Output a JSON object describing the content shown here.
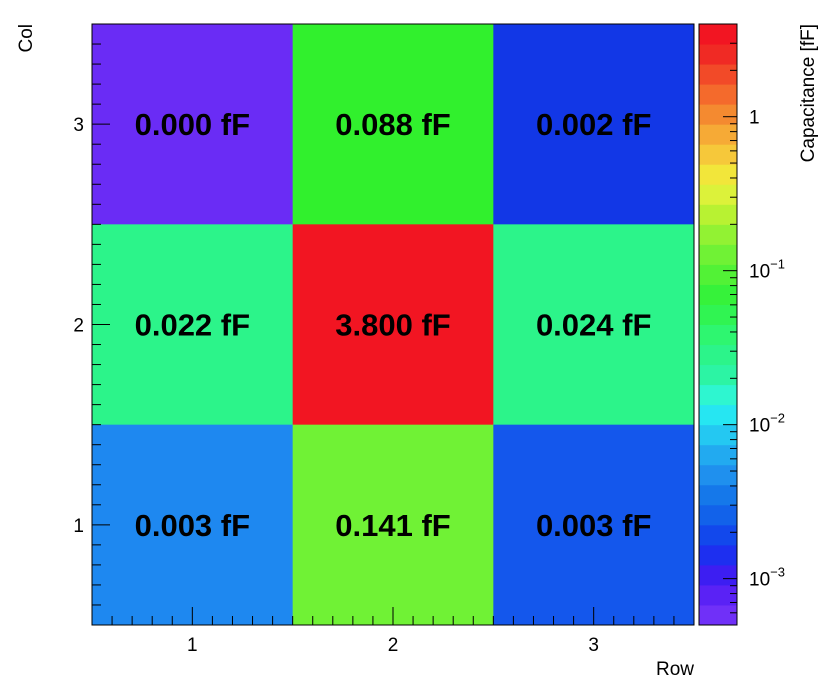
{
  "chart_data": {
    "type": "heatmap",
    "xlabel": "Row",
    "ylabel": "Col",
    "x_categories": [
      "1",
      "2",
      "3"
    ],
    "y_categories": [
      "1",
      "2",
      "3"
    ],
    "cells": [
      {
        "x": "1",
        "y": "3",
        "value": 0.0005,
        "label": "0.000 fF",
        "color": "#6a2cf5"
      },
      {
        "x": "2",
        "y": "3",
        "value": 0.088,
        "label": "0.088 fF",
        "color": "#31f02d"
      },
      {
        "x": "3",
        "y": "3",
        "value": 0.002,
        "label": "0.002 fF",
        "color": "#1237e6"
      },
      {
        "x": "1",
        "y": "2",
        "value": 0.022,
        "label": "0.022 fF",
        "color": "#2cf48a"
      },
      {
        "x": "2",
        "y": "2",
        "value": 3.8,
        "label": "3.800 fF",
        "color": "#f21522"
      },
      {
        "x": "3",
        "y": "2",
        "value": 0.024,
        "label": "0.024 fF",
        "color": "#2cf48a"
      },
      {
        "x": "1",
        "y": "1",
        "value": 0.003,
        "label": "0.003 fF",
        "color": "#1e88f0"
      },
      {
        "x": "2",
        "y": "1",
        "value": 0.141,
        "label": "0.141 fF",
        "color": "#70f235"
      },
      {
        "x": "3",
        "y": "1",
        "value": 0.003,
        "label": "0.003 fF",
        "color": "#1457ec"
      }
    ],
    "colorbar": {
      "label": "Capacitance [fF]",
      "scale": "log",
      "range": [
        0.0005,
        4
      ],
      "ticks": [
        {
          "base": "10",
          "exp": "−3",
          "value": 0.001
        },
        {
          "base": "10",
          "exp": "−2",
          "value": 0.01
        },
        {
          "base": "10",
          "exp": "−1",
          "value": 0.1
        },
        {
          "base": "1",
          "exp": "",
          "value": 1
        }
      ],
      "colors": [
        "#7030f8",
        "#5a22f5",
        "#3d1ef2",
        "#1d2ff0",
        "#1248ec",
        "#1262ea",
        "#1578ea",
        "#1f90ee",
        "#22aaf0",
        "#24c8f2",
        "#26e6f2",
        "#2ef6d0",
        "#2cf4a4",
        "#2cf48a",
        "#2ef670",
        "#30f452",
        "#36f23a",
        "#52f236",
        "#70f235",
        "#92f233",
        "#b8f232",
        "#dcf23a",
        "#f2e63a",
        "#f6c83a",
        "#f6aa36",
        "#f48a30",
        "#f46a2c",
        "#f24a28",
        "#f02a24",
        "#f21522"
      ]
    }
  }
}
